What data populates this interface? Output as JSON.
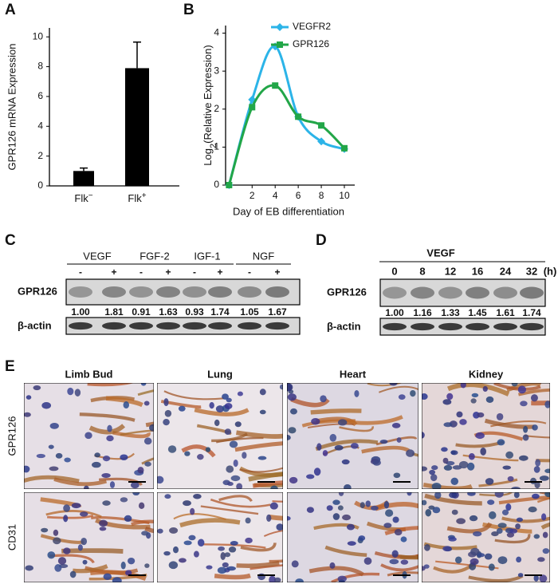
{
  "panel_labels": [
    "A",
    "B",
    "C",
    "D",
    "E"
  ],
  "chart_data": [
    {
      "type": "bar",
      "y_label": "GPR126 mRNA Expression",
      "categories": [
        "Flk",
        "Flk"
      ],
      "category_superscripts": [
        "−",
        "+"
      ],
      "values": [
        1.0,
        7.9
      ],
      "errors": [
        0.2,
        1.75
      ],
      "color": "#000000",
      "ylim": [
        0,
        10.6
      ],
      "yticks": [
        0,
        2,
        4,
        6,
        8,
        10
      ]
    },
    {
      "type": "line",
      "y_label": {
        "text": "Log",
        "subscript": "2",
        "rest": "(Relative Expression)"
      },
      "x_label": "Day of EB differentiation",
      "x": [
        0,
        2,
        4,
        6,
        8,
        10
      ],
      "series": [
        {
          "name": "VEGFR2",
          "color": "#2cb4e8",
          "marker": "diamond",
          "values": [
            0,
            2.25,
            3.65,
            1.8,
            1.15,
            0.95
          ]
        },
        {
          "name": "GPR126",
          "color": "#22a648",
          "marker": "square",
          "values": [
            0,
            2.05,
            2.62,
            1.8,
            1.57,
            0.97
          ]
        }
      ],
      "xlim": [
        -0.3,
        10.9
      ],
      "ylim": [
        0,
        4.2
      ],
      "xticks": [
        2,
        4,
        6,
        8,
        10
      ],
      "yticks": [
        0,
        1,
        2,
        3,
        4
      ],
      "legend": "top-right"
    }
  ],
  "blot_c": {
    "groups": [
      {
        "name": "VEGF",
        "signs": [
          "-",
          "+"
        ]
      },
      {
        "name": "FGF-2",
        "signs": [
          "-",
          "+"
        ]
      },
      {
        "name": "IGF-1",
        "signs": [
          "-",
          "+"
        ]
      },
      {
        "name": "NGF",
        "signs": [
          "-",
          "+"
        ]
      }
    ],
    "rows": [
      "GPR126",
      "β-actin"
    ],
    "ratios": [
      "1.00",
      "1.81",
      "0.91",
      "1.63",
      "0.93",
      "1.74",
      "1.05",
      "1.67"
    ]
  },
  "blot_d": {
    "treatment": "VEGF",
    "times": [
      "0",
      "8",
      "12",
      "16",
      "24",
      "32"
    ],
    "unit": "(h)",
    "rows": [
      "GPR126",
      "β-actin"
    ],
    "ratios": [
      "1.00",
      "1.16",
      "1.33",
      "1.45",
      "1.61",
      "1.74"
    ]
  },
  "histology": {
    "columns": [
      "Limb Bud",
      "Lung",
      "Heart",
      "Kidney"
    ],
    "rows": [
      "GPR126",
      "CD31"
    ]
  }
}
